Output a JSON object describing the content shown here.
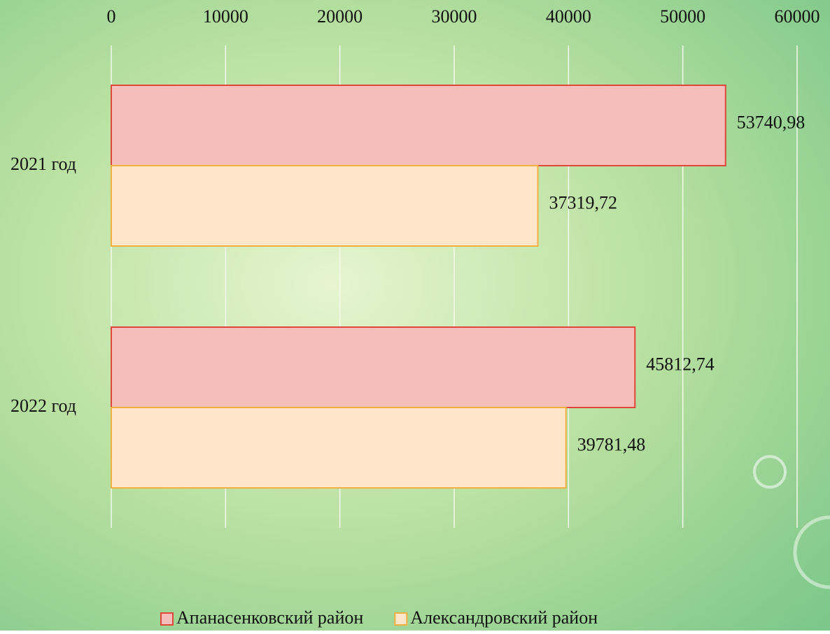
{
  "chart_data": {
    "type": "hbar",
    "categories": [
      "2021 год",
      "2022 год"
    ],
    "series": [
      {
        "name": "Апанасенковский район",
        "color": "#f4bfbb",
        "edge": "#e0463a",
        "values": [
          53740.98,
          45812.74
        ],
        "value_labels": [
          "53740,98",
          "45812,74"
        ]
      },
      {
        "name": "Александровский район",
        "color": "#fde6c9",
        "edge": "#f2b040",
        "values": [
          37319.72,
          39781.48
        ],
        "value_labels": [
          "37319,72",
          "39781,48"
        ]
      }
    ],
    "xlim": [
      0,
      60000
    ],
    "xticks": [
      0,
      10000,
      20000,
      30000,
      40000,
      50000,
      60000
    ],
    "grid": true,
    "legend": "bottom"
  }
}
